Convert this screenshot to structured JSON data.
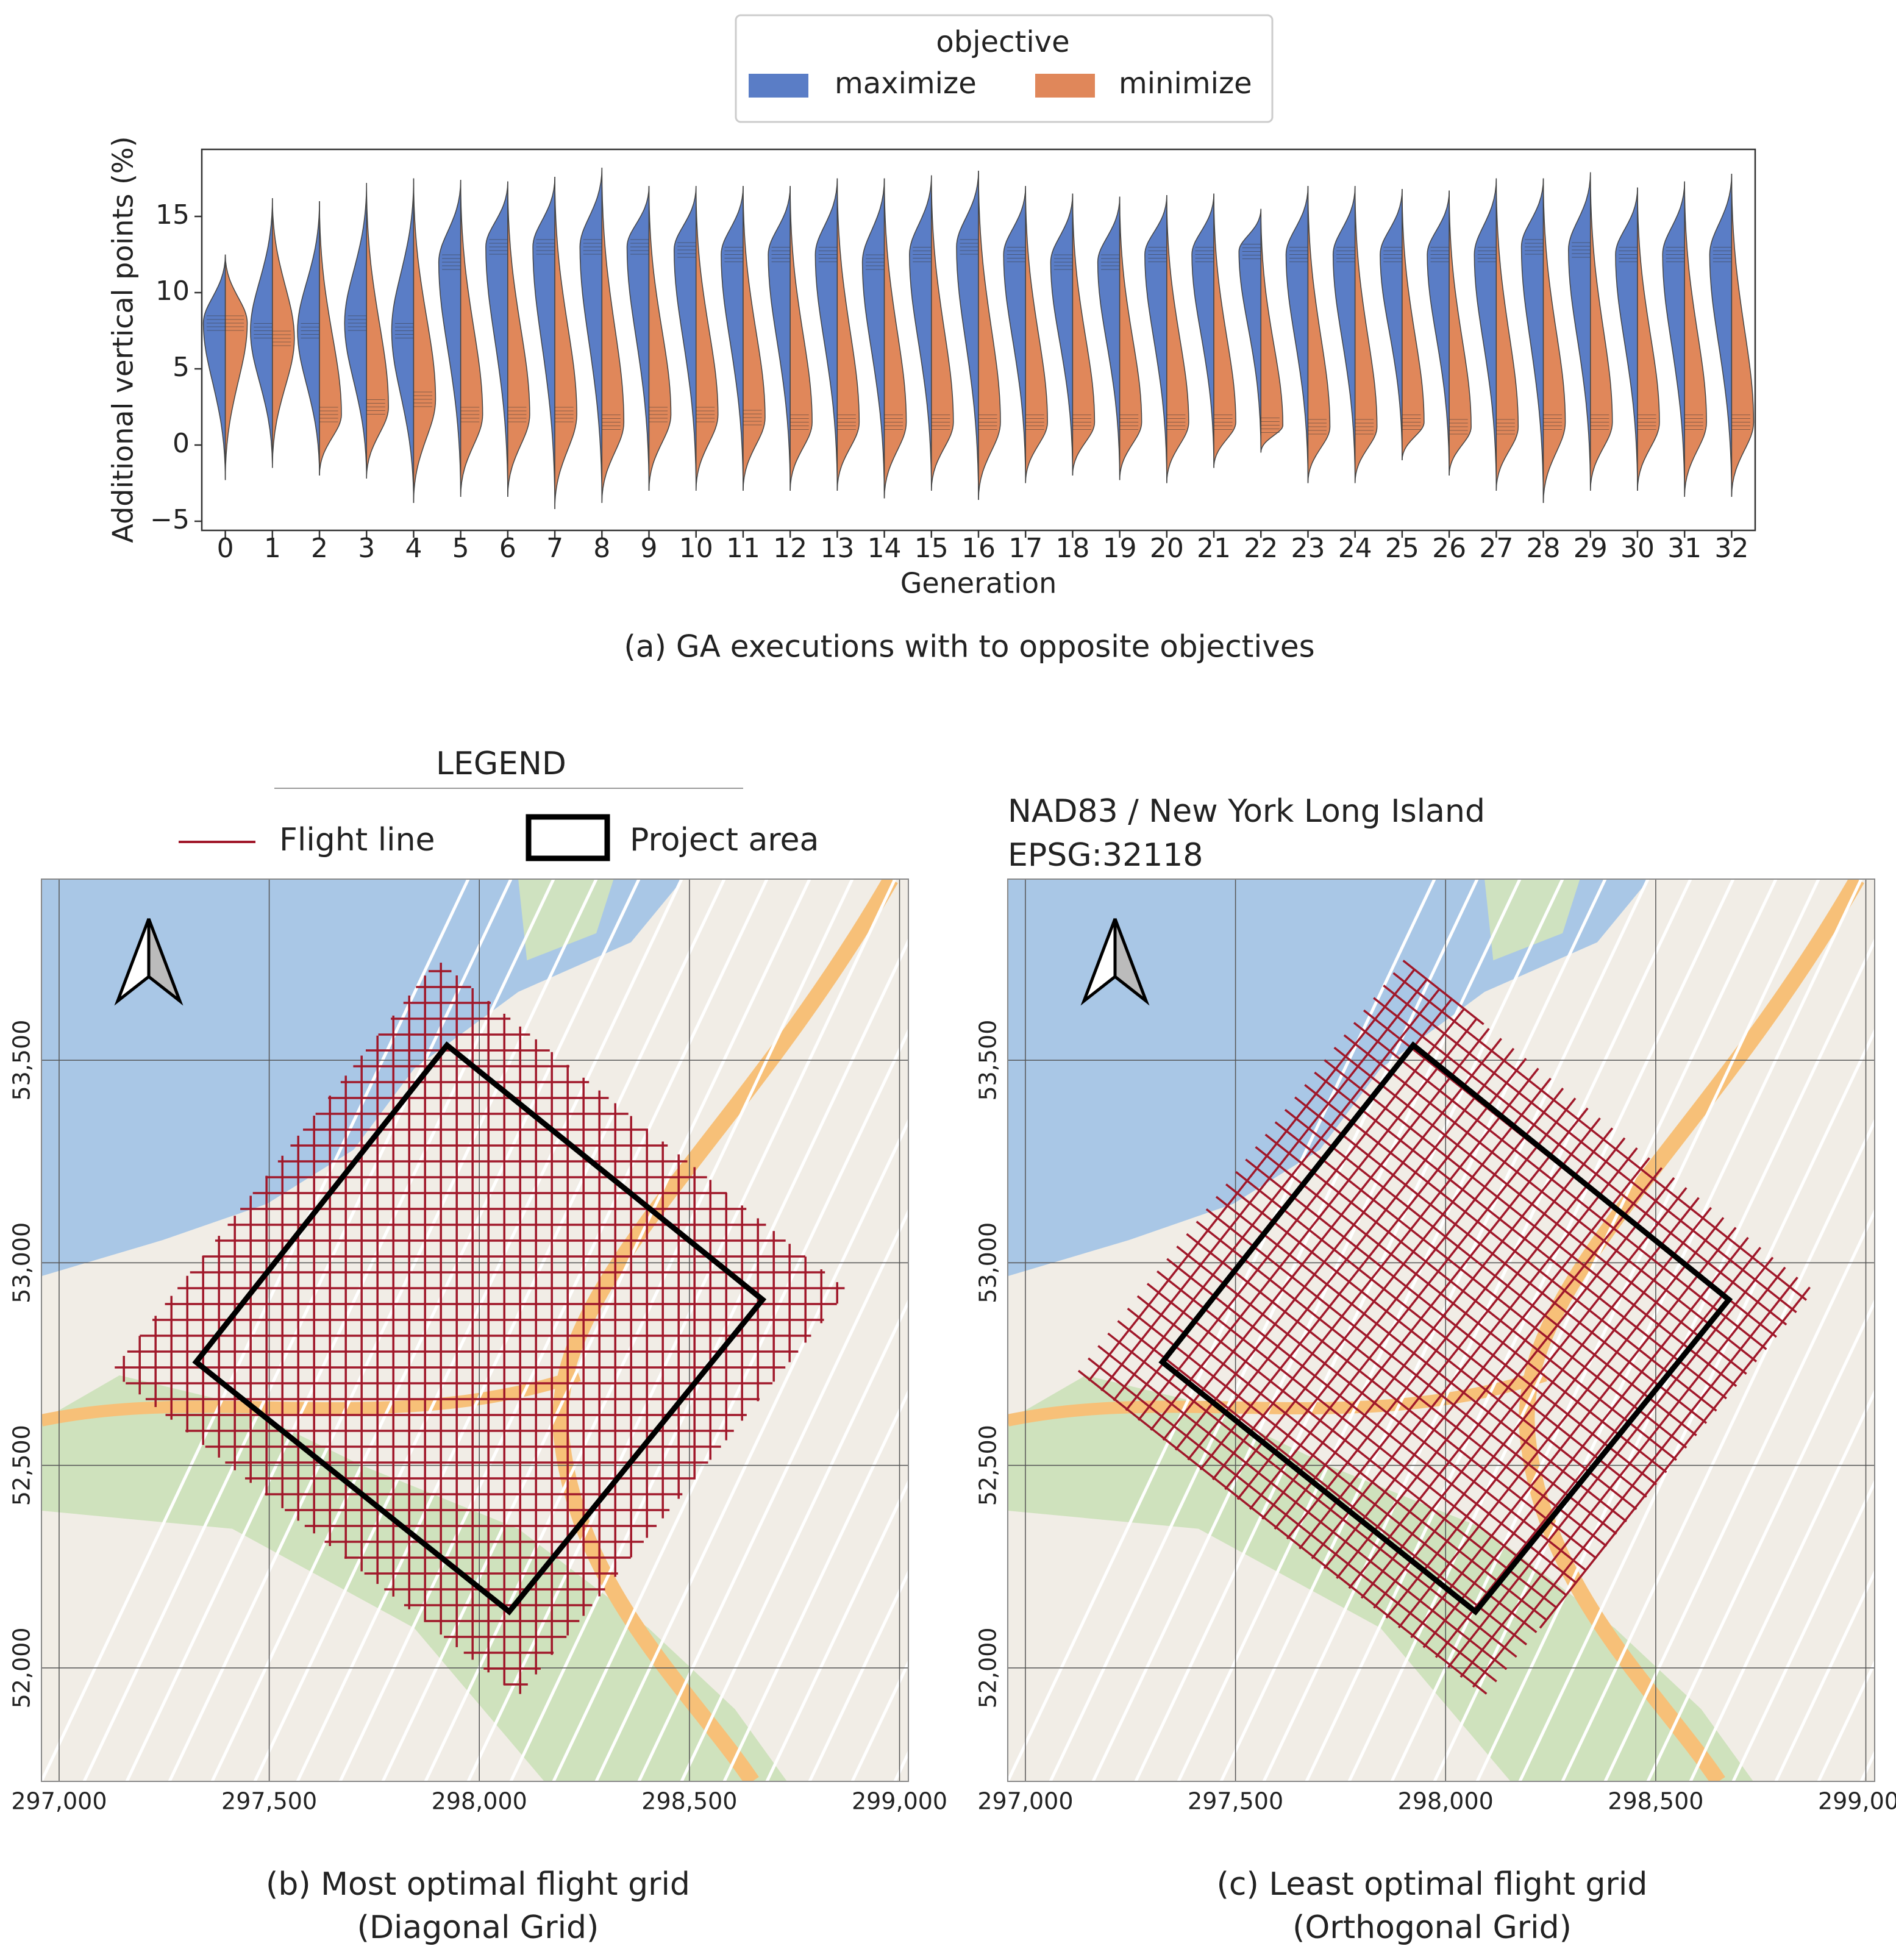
{
  "chart_data": [
    {
      "type": "violin",
      "caption": "(a) GA executions with to opposite objectives",
      "legend_title": "objective",
      "xlabel": "Generation",
      "ylabel": "Additional vertical points (%)",
      "categories": [
        "0",
        "1",
        "2",
        "3",
        "4",
        "5",
        "6",
        "7",
        "8",
        "9",
        "10",
        "11",
        "12",
        "13",
        "14",
        "15",
        "16",
        "17",
        "18",
        "19",
        "20",
        "21",
        "22",
        "23",
        "24",
        "25",
        "26",
        "27",
        "28",
        "29",
        "30",
        "31",
        "32"
      ],
      "ylim": [
        -5.6,
        19.4
      ],
      "yticks": [
        {
          "value": -5,
          "label": "−5"
        },
        0,
        5,
        10,
        15
      ],
      "series": [
        {
          "name": "maximize",
          "color": "#5a7dc6",
          "min": [
            -2.3,
            -1.5,
            -2,
            -2.2,
            -3.8,
            -3.4,
            -3.4,
            -4.2,
            -3.8,
            -3,
            -3,
            -3,
            -3,
            -3,
            -3.5,
            -3,
            -3.6,
            -2.5,
            -2,
            -2.3,
            -2.5,
            -1.5,
            -0.5,
            -2.5,
            -2.5,
            -1,
            -2,
            -3,
            -3.8,
            -3,
            -3,
            -3.4,
            -3.4
          ],
          "mode": [
            8,
            7.5,
            7.5,
            8,
            7.5,
            12,
            13,
            13,
            13,
            13,
            12.8,
            12.5,
            12.5,
            12.5,
            12,
            12.5,
            13,
            12.5,
            12,
            12,
            12.5,
            12.5,
            12.7,
            12.5,
            12.5,
            12.5,
            12.5,
            12.5,
            13,
            12.8,
            12.5,
            12.5,
            12.5
          ],
          "max": [
            12.5,
            16.2,
            16,
            17.2,
            17.5,
            17.4,
            17.3,
            17.6,
            18.2,
            17,
            17,
            17,
            17,
            17.5,
            17.5,
            17.7,
            18,
            17,
            16.5,
            16.3,
            16.4,
            16.5,
            15.5,
            17,
            17,
            16.8,
            16.7,
            17.5,
            17.5,
            17.9,
            16.9,
            17.3,
            17.8
          ]
        },
        {
          "name": "minimize",
          "color": "#e0875a",
          "min": [
            -2.3,
            -1.5,
            -2,
            -2.2,
            -3.8,
            -3.4,
            -3.4,
            -4.2,
            -3.8,
            -3,
            -3,
            -3,
            -3,
            -3,
            -3.5,
            -3,
            -3.6,
            -2.5,
            -2,
            -2.3,
            -2.5,
            -1.5,
            -0.5,
            -2.5,
            -2.5,
            -1,
            -2,
            -3,
            -3.8,
            -3,
            -3,
            -3.4,
            -3.4
          ],
          "mode": [
            8,
            7,
            2,
            2.5,
            3,
            2,
            2,
            2,
            1.5,
            2,
            2,
            1.8,
            1.5,
            1.5,
            1.5,
            1.5,
            1.5,
            1.5,
            1.5,
            1.5,
            1.5,
            1.5,
            1.3,
            1.2,
            1.2,
            1.5,
            1.2,
            1.2,
            1.5,
            1.5,
            1.5,
            1.5,
            1.5
          ],
          "max": [
            12.5,
            16.2,
            16,
            17.2,
            17.5,
            17.4,
            17.3,
            17.6,
            18.2,
            17,
            17,
            17,
            17,
            17.5,
            17.5,
            17.7,
            18,
            17,
            16.5,
            16.3,
            16.4,
            16.5,
            15.5,
            17,
            17,
            16.8,
            16.7,
            17.5,
            17.5,
            17.9,
            16.9,
            17.3,
            17.8
          ]
        }
      ]
    },
    {
      "type": "map",
      "caption": [
        "(b) Most optimal flight grid",
        "(Diagonal Grid)"
      ],
      "xlim": [
        296958,
        299021
      ],
      "ylim": [
        51720,
        53947
      ],
      "xticks": [
        {
          "value": 297000,
          "label": "297,000"
        },
        {
          "value": 297500,
          "label": "297,500"
        },
        {
          "value": 298000,
          "label": "298,000"
        },
        {
          "value": 298500,
          "label": "298,500"
        },
        {
          "value": 299000,
          "label": "299,000"
        }
      ],
      "yticks": [
        {
          "value": 52000,
          "label": "52,000"
        },
        {
          "value": 52500,
          "label": "52,500"
        },
        {
          "value": 53000,
          "label": "53,000"
        },
        {
          "value": 53500,
          "label": "53,500"
        }
      ],
      "project_area": {
        "x": [
          297326,
          297923,
          298674,
          298071
        ],
        "y": [
          52755,
          53537,
          52909,
          52139
        ]
      }
    },
    {
      "type": "map",
      "caption": [
        "(c) Least optimal flight grid",
        "(Orthogonal Grid)"
      ],
      "xlim": [
        296958,
        299021
      ],
      "ylim": [
        51720,
        53947
      ],
      "xticks": [
        {
          "value": 297000,
          "label": "297,000"
        },
        {
          "value": 297500,
          "label": "297,500"
        },
        {
          "value": 298000,
          "label": "298,000"
        },
        {
          "value": 298500,
          "label": "298,500"
        },
        {
          "value": 299000,
          "label": "299,000"
        }
      ],
      "yticks": [
        {
          "value": 52000,
          "label": "52,000"
        },
        {
          "value": 52500,
          "label": "52,500"
        },
        {
          "value": 53000,
          "label": "53,000"
        },
        {
          "value": 53500,
          "label": "53,500"
        }
      ],
      "project_area": {
        "x": [
          297326,
          297923,
          298674,
          298071
        ],
        "y": [
          52755,
          53537,
          52909,
          52139
        ]
      }
    }
  ],
  "map_legend": {
    "title": "LEGEND",
    "items": [
      "Flight line",
      "Project area"
    ]
  },
  "crs": [
    "NAD83 / New York Long Island",
    "EPSG:32118"
  ]
}
